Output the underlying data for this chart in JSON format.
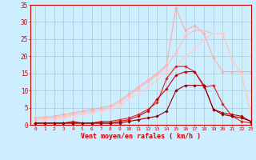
{
  "x": [
    0,
    1,
    2,
    3,
    4,
    5,
    6,
    7,
    8,
    9,
    10,
    11,
    12,
    13,
    14,
    15,
    16,
    17,
    18,
    19,
    20,
    21,
    22,
    23
  ],
  "series": [
    {
      "color": "#ffaaaa",
      "linewidth": 0.8,
      "marker": "D",
      "markersize": 1.8,
      "y": [
        2.0,
        2.2,
        2.5,
        3.0,
        3.5,
        4.0,
        4.5,
        5.0,
        5.5,
        7.0,
        9.0,
        11.0,
        13.0,
        15.0,
        17.5,
        34.0,
        27.5,
        29.0,
        26.5,
        19.5,
        15.5,
        15.5,
        15.5,
        15.5
      ]
    },
    {
      "color": "#ffbbbb",
      "linewidth": 0.8,
      "marker": "D",
      "markersize": 1.8,
      "y": [
        1.5,
        1.8,
        2.0,
        2.5,
        3.0,
        3.5,
        4.0,
        4.5,
        5.0,
        6.5,
        8.5,
        10.5,
        12.5,
        14.5,
        17.0,
        21.0,
        26.0,
        27.5,
        27.5,
        26.5,
        26.5,
        19.0,
        15.0,
        3.0
      ]
    },
    {
      "color": "#ffcccc",
      "linewidth": 0.8,
      "marker": "D",
      "markersize": 1.8,
      "y": [
        1.0,
        1.2,
        1.5,
        2.0,
        2.5,
        3.0,
        3.5,
        4.0,
        4.5,
        5.5,
        7.5,
        9.0,
        11.0,
        13.0,
        15.5,
        17.0,
        20.0,
        22.0,
        25.0,
        26.5,
        26.5,
        19.0,
        15.0,
        3.0
      ]
    },
    {
      "color": "#dd2222",
      "linewidth": 0.8,
      "marker": "D",
      "markersize": 1.8,
      "y": [
        0.5,
        0.5,
        0.5,
        0.5,
        1.0,
        0.5,
        0.5,
        1.0,
        1.0,
        1.5,
        2.0,
        3.0,
        4.5,
        6.5,
        13.5,
        17.0,
        17.0,
        15.5,
        11.0,
        11.5,
        6.0,
        2.5,
        1.0,
        0.5
      ]
    },
    {
      "color": "#cc0000",
      "linewidth": 0.8,
      "marker": "D",
      "markersize": 1.8,
      "y": [
        0.5,
        0.5,
        0.5,
        0.5,
        0.5,
        0.5,
        0.5,
        0.5,
        0.5,
        1.0,
        1.5,
        2.5,
        4.0,
        7.5,
        10.5,
        14.5,
        15.5,
        15.5,
        11.5,
        4.5,
        3.5,
        3.0,
        2.5,
        1.0
      ]
    },
    {
      "color": "#880000",
      "linewidth": 0.8,
      "marker": "D",
      "markersize": 1.8,
      "y": [
        0.5,
        0.5,
        0.5,
        0.5,
        0.5,
        0.5,
        0.5,
        0.5,
        0.5,
        0.5,
        1.0,
        1.5,
        2.0,
        2.5,
        4.0,
        10.0,
        11.5,
        11.5,
        11.5,
        4.5,
        3.0,
        2.5,
        2.0,
        1.0
      ]
    }
  ],
  "xlabel": "Vent moyen/en rafales ( km/h )",
  "xlim": [
    -0.5,
    23
  ],
  "ylim": [
    0,
    35
  ],
  "xticks": [
    0,
    1,
    2,
    3,
    4,
    5,
    6,
    7,
    8,
    9,
    10,
    11,
    12,
    13,
    14,
    15,
    16,
    17,
    18,
    19,
    20,
    21,
    22,
    23
  ],
  "yticks": [
    0,
    5,
    10,
    15,
    20,
    25,
    30,
    35
  ],
  "bg_color": "#cceeff",
  "grid_color": "#aacccc",
  "axis_color": "#cc0000",
  "tick_color": "#cc0000",
  "xlabel_color": "#cc0000",
  "figsize": [
    3.2,
    2.0
  ],
  "dpi": 100
}
